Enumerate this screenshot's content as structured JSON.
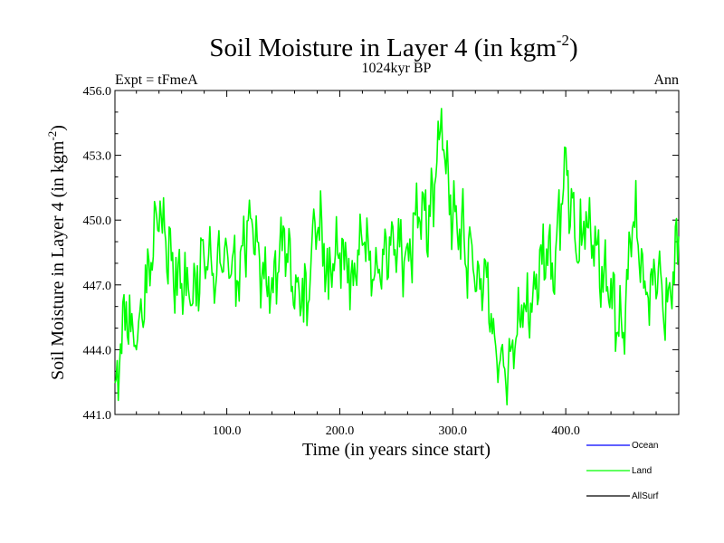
{
  "chart_data": {
    "type": "line",
    "title": "Soil Moisture in Layer 4 (in kgm",
    "title_sup": "-2",
    "title_tail": ")",
    "subtitle_left": "Expt = tFmeA",
    "subtitle_center": "1024kyr BP",
    "subtitle_right": "Ann",
    "xlabel": "Time (in years since start)",
    "ylabel": "Soil Moisture in Layer 4 (in kgm",
    "ylabel_sup": "-2",
    "ylabel_tail": ")",
    "xlim": [
      1,
      500
    ],
    "ylim": [
      441.0,
      456.0
    ],
    "xticks": [
      100,
      200,
      300,
      400
    ],
    "xtick_labels": [
      "100.0",
      "200.0",
      "300.0",
      "400.0"
    ],
    "yticks": [
      441,
      444,
      447,
      450,
      453,
      456
    ],
    "ytick_labels": [
      "441.0",
      "444.0",
      "447.0",
      "450.0",
      "453.0",
      "456.0"
    ],
    "legend": [
      {
        "name": "Ocean",
        "color": "#0000ff"
      },
      {
        "name": "Land",
        "color": "#00ff00"
      },
      {
        "name": "AllSurf",
        "color": "#000000"
      }
    ],
    "series": [
      {
        "name": "Land",
        "color": "#00ff00",
        "x": [
          1,
          10,
          20,
          30,
          40,
          50,
          60,
          70,
          80,
          90,
          100,
          110,
          120,
          130,
          140,
          150,
          160,
          170,
          180,
          190,
          200,
          210,
          220,
          230,
          240,
          250,
          260,
          270,
          280,
          290,
          300,
          310,
          320,
          330,
          340,
          350,
          360,
          370,
          380,
          390,
          400,
          410,
          420,
          430,
          440,
          450,
          460,
          470,
          480,
          490,
          500
        ],
        "values": [
          441.5,
          446.0,
          444.0,
          447.5,
          450.5,
          448.0,
          447.0,
          446.5,
          448.5,
          447.5,
          448.5,
          447.0,
          450.0,
          448.0,
          447.0,
          449.5,
          447.0,
          446.0,
          450.5,
          447.0,
          448.5,
          447.5,
          449.0,
          447.5,
          448.0,
          449.5,
          448.0,
          451.0,
          450.0,
          454.5,
          450.0,
          449.0,
          447.5,
          447.0,
          443.5,
          443.0,
          446.0,
          445.5,
          448.5,
          448.0,
          452.5,
          448.5,
          450.0,
          447.5,
          446.5,
          444.5,
          451.0,
          446.5,
          447.5,
          446.0,
          449.5
        ]
      }
    ]
  }
}
